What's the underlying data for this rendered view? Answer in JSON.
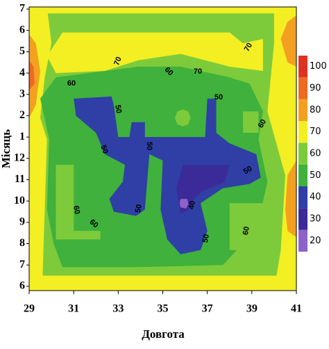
{
  "chart_data": {
    "type": "contourf",
    "xlabel": "Довгота",
    "ylabel": "Місяць",
    "xlim": [
      29,
      41
    ],
    "xticks": [
      29,
      31,
      33,
      35,
      37,
      39,
      41
    ],
    "ylim": [
      13.2,
      -0.1
    ],
    "yticks": [
      {
        "value": 0,
        "label": "7"
      },
      {
        "value": 1,
        "label": "6"
      },
      {
        "value": 2,
        "label": "5"
      },
      {
        "value": 3,
        "label": "4"
      },
      {
        "value": 4,
        "label": "3"
      },
      {
        "value": 5,
        "label": "2"
      },
      {
        "value": 6,
        "label": "1"
      },
      {
        "value": 7,
        "label": "12"
      },
      {
        "value": 8,
        "label": "11"
      },
      {
        "value": 9,
        "label": "10"
      },
      {
        "value": 10,
        "label": "9"
      },
      {
        "value": 11,
        "label": "8"
      },
      {
        "value": 12,
        "label": "7"
      },
      {
        "value": 13,
        "label": "6"
      }
    ],
    "levels": [
      20,
      30,
      40,
      50,
      60,
      70,
      80,
      90,
      100
    ],
    "colors": [
      "#8d62c9",
      "#3b2b99",
      "#2f3fa6",
      "#3fb13c",
      "#7dcb3b",
      "#f3ef22",
      "#f3a021",
      "#ee6a22",
      "#df3322"
    ],
    "contours": [
      {
        "level": 60,
        "points": [
          [
            29,
            -0.1
          ],
          [
            41,
            -0.1
          ],
          [
            41,
            13.2
          ],
          [
            29,
            13.2
          ]
        ]
      },
      {
        "level": 70,
        "points": [
          [
            29,
            -0.1
          ],
          [
            41,
            -0.1
          ],
          [
            41,
            0.2
          ],
          [
            29,
            0.2
          ]
        ]
      },
      {
        "level": 70,
        "points": [
          [
            30.5,
            1.1
          ],
          [
            38,
            1.1
          ],
          [
            38.6,
            1.6
          ],
          [
            39.5,
            1.4
          ],
          [
            39.5,
            2.9
          ],
          [
            38,
            2.7
          ],
          [
            35.8,
            2.1
          ],
          [
            33.9,
            2.4
          ],
          [
            32.4,
            2.9
          ],
          [
            30.2,
            3.0
          ],
          [
            29.8,
            2.2
          ]
        ]
      },
      {
        "level": 70,
        "points": [
          [
            29,
            -0.1
          ],
          [
            29.8,
            -0.1
          ],
          [
            30,
            1.6
          ],
          [
            29.7,
            3.2
          ],
          [
            29.5,
            5.1
          ],
          [
            29.8,
            6.1
          ],
          [
            29.6,
            12.6
          ],
          [
            29.8,
            13.2
          ],
          [
            29,
            13.2
          ]
        ]
      },
      {
        "level": 70,
        "points": [
          [
            40,
            -0.1
          ],
          [
            41,
            -0.1
          ],
          [
            41,
            13.2
          ],
          [
            40,
            13.2
          ],
          [
            40.3,
            11.3
          ],
          [
            40.5,
            7.8
          ],
          [
            39.7,
            4.8
          ],
          [
            40,
            1.6
          ]
        ]
      },
      {
        "level": 70,
        "points": [
          [
            29,
            12.5
          ],
          [
            41,
            12.5
          ],
          [
            41,
            13.2
          ],
          [
            29,
            13.2
          ]
        ]
      },
      {
        "level": 80,
        "points": [
          [
            29,
            1.2
          ],
          [
            29.3,
            1.6
          ],
          [
            29.5,
            2.9
          ],
          [
            29.3,
            4.5
          ],
          [
            29,
            5.1
          ]
        ]
      },
      {
        "level": 90,
        "points": [
          [
            29,
            2.4
          ],
          [
            29.2,
            2.7
          ],
          [
            29.25,
            3.5
          ],
          [
            29,
            3.8
          ]
        ]
      },
      {
        "level": 80,
        "points": [
          [
            41,
            0.3
          ],
          [
            40.6,
            0.6
          ],
          [
            40.3,
            1.4
          ],
          [
            40.6,
            2.5
          ],
          [
            41,
            2.7
          ]
        ]
      },
      {
        "level": 80,
        "points": [
          [
            41,
            7.1
          ],
          [
            40.6,
            7.8
          ],
          [
            40.5,
            9.4
          ],
          [
            40.6,
            10.4
          ],
          [
            41,
            10.7
          ]
        ]
      },
      {
        "level": 50,
        "points": [
          [
            30.2,
            3.2
          ],
          [
            33.9,
            2.7
          ],
          [
            35.8,
            2.7
          ],
          [
            38,
            3.2
          ],
          [
            38.9,
            3.5
          ],
          [
            39.5,
            4.8
          ],
          [
            39.3,
            6.1
          ],
          [
            39.7,
            8.1
          ],
          [
            39.2,
            10.4
          ],
          [
            38.6,
            11
          ],
          [
            37.7,
            12
          ],
          [
            33.9,
            12.1
          ],
          [
            30.5,
            12.1
          ],
          [
            30.1,
            11
          ],
          [
            29.8,
            9.4
          ],
          [
            29.9,
            6.1
          ],
          [
            29.5,
            4.2
          ]
        ]
      },
      {
        "level": 60,
        "points": [
          [
            30.2,
            7.3
          ],
          [
            31,
            7.3
          ],
          [
            31,
            10.4
          ],
          [
            32.2,
            10.4
          ],
          [
            32.2,
            10.8
          ],
          [
            30.2,
            10.8
          ]
        ]
      },
      {
        "level": 60,
        "points": [
          [
            38,
            9.1
          ],
          [
            39.5,
            9.1
          ],
          [
            39.5,
            11.3
          ],
          [
            38,
            11.3
          ]
        ]
      },
      {
        "level": 60,
        "points": [
          [
            38.6,
            4.8
          ],
          [
            39.3,
            4.8
          ],
          [
            39.3,
            5.8
          ],
          [
            38.6,
            5.8
          ]
        ]
      },
      {
        "level": 60,
        "points": [
          [
            35.55,
            5.1
          ],
          [
            35.65,
            4.8
          ],
          [
            35.9,
            4.7
          ],
          [
            36.15,
            4.8
          ],
          [
            36.25,
            5.1
          ],
          [
            36.15,
            5.4
          ],
          [
            35.9,
            5.5
          ],
          [
            35.65,
            5.4
          ]
        ]
      },
      {
        "level": 40,
        "points": [
          [
            31,
            4.2
          ],
          [
            32.7,
            4.1
          ],
          [
            32.8,
            4.5
          ],
          [
            33,
            6
          ],
          [
            33.5,
            6
          ],
          [
            33.6,
            5.3
          ],
          [
            34.2,
            5.3
          ],
          [
            34.2,
            6
          ],
          [
            34.9,
            6
          ],
          [
            36.9,
            6
          ],
          [
            37,
            4.2
          ],
          [
            37.4,
            4.2
          ],
          [
            37.4,
            5.8
          ],
          [
            38,
            6.3
          ],
          [
            39.2,
            6.8
          ],
          [
            39.4,
            7.9
          ],
          [
            38.9,
            8.2
          ],
          [
            37.7,
            8.4
          ],
          [
            36.7,
            9.1
          ],
          [
            37,
            10.4
          ],
          [
            36.7,
            11.3
          ],
          [
            35.8,
            11.5
          ],
          [
            35.2,
            10.8
          ],
          [
            34.9,
            9.4
          ],
          [
            35,
            7.1
          ],
          [
            34.4,
            6.8
          ],
          [
            34.2,
            9.4
          ],
          [
            33.8,
            9.7
          ],
          [
            32.8,
            9.5
          ],
          [
            32.6,
            8.9
          ],
          [
            33.2,
            8.1
          ],
          [
            33.3,
            7.3
          ],
          [
            32.4,
            6.8
          ],
          [
            32,
            5.8
          ],
          [
            31.1,
            5
          ]
        ]
      },
      {
        "level": 30,
        "points": [
          [
            35.9,
            7.3
          ],
          [
            38,
            7.3
          ],
          [
            37.8,
            8.1
          ],
          [
            36.7,
            8.6
          ],
          [
            36.4,
            8.9
          ],
          [
            36.2,
            9.4
          ],
          [
            35.8,
            9.6
          ],
          [
            35.6,
            8.4
          ]
        ]
      },
      {
        "level": 20,
        "points": [
          [
            35.8,
            8.9
          ],
          [
            36.1,
            8.9
          ],
          [
            36.15,
            9.15
          ],
          [
            36.05,
            9.35
          ],
          [
            35.8,
            9.3
          ],
          [
            35.75,
            9.1
          ]
        ]
      }
    ],
    "contour_labels": [
      70,
      60,
      70,
      70,
      60,
      50,
      50,
      60,
      50,
      50,
      50,
      40,
      50,
      60,
      60,
      50,
      60
    ]
  }
}
